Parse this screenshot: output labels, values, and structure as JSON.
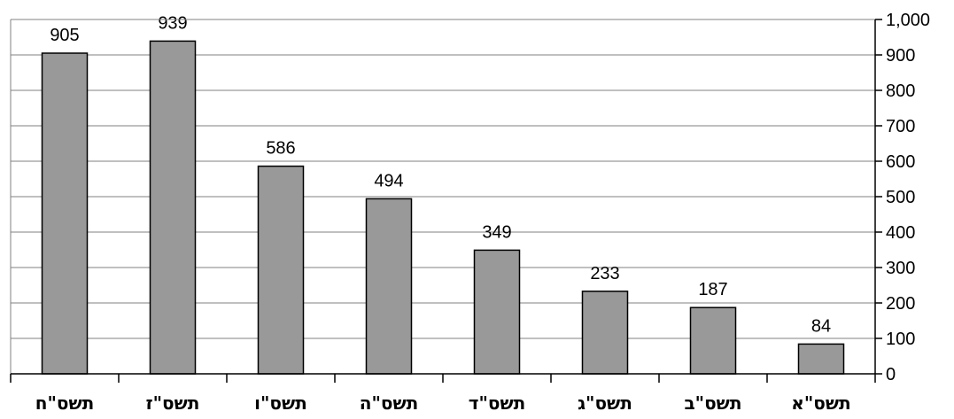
{
  "chart_data": {
    "type": "bar",
    "categories": [
      "תשס\"ח",
      "תשס\"ז",
      "תשס\"ו",
      "תשס\"ה",
      "תשס\"ד",
      "תשס\"ג",
      "תשס\"ב",
      "תשס\"א"
    ],
    "values": [
      905,
      939,
      586,
      494,
      349,
      233,
      187,
      84
    ],
    "data_labels": [
      "905",
      "939",
      "586",
      "494",
      "349",
      "233",
      "187",
      "84"
    ],
    "y_ticks": [
      0,
      100,
      200,
      300,
      400,
      500,
      600,
      700,
      800,
      900,
      1000
    ],
    "y_tick_labels": [
      "0",
      "100",
      "200",
      "300",
      "400",
      "500",
      "600",
      "700",
      "800",
      "900",
      "1,000"
    ],
    "ylim": [
      0,
      1000
    ],
    "y_axis_side": "right",
    "grid": true,
    "legend": "none",
    "title": "",
    "xlabel": "",
    "ylabel": "",
    "colors": {
      "bar_fill": "#999999",
      "bar_stroke": "#000000",
      "grid": "#808080",
      "axis": "#000000"
    }
  }
}
